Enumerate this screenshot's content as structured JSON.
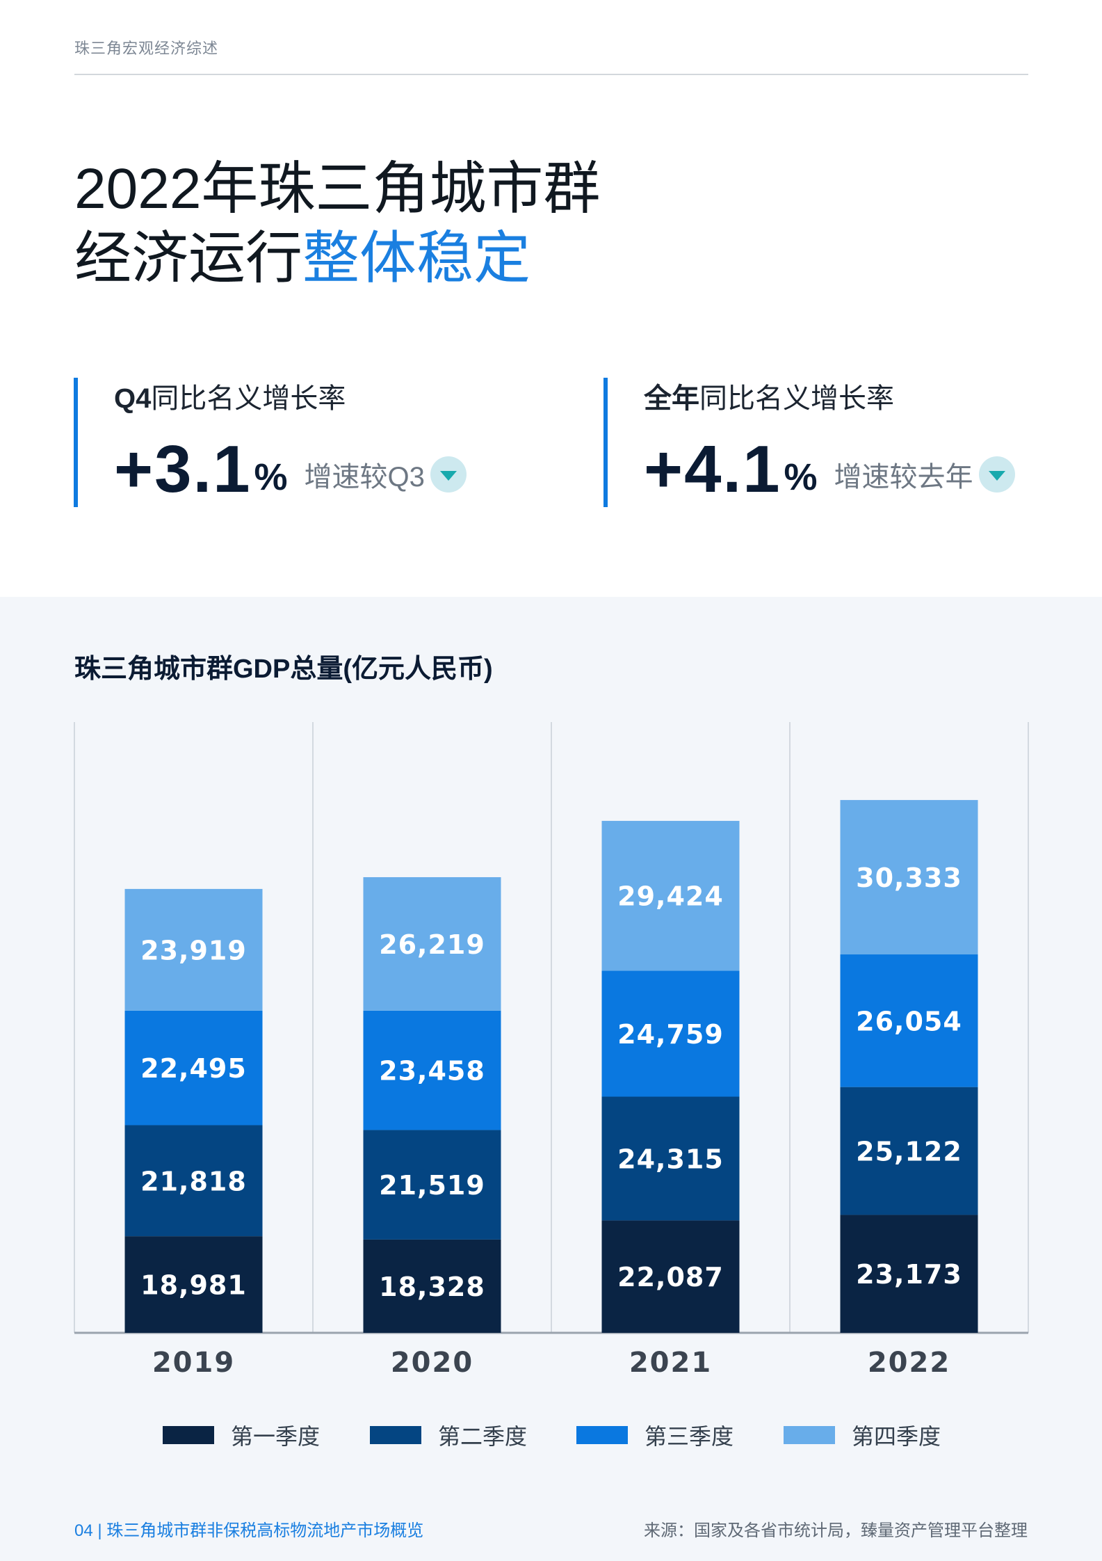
{
  "header": {
    "section": "珠三角宏观经济综述"
  },
  "title": {
    "line1": "2022年珠三角城市群",
    "line2_plain": "经济运行",
    "line2_accent": "整体稳定"
  },
  "kpis": [
    {
      "label_strong": "Q4",
      "label_rest": "同比名义增长率",
      "value": "+3.1",
      "unit": "%",
      "note": "增速较Q3",
      "icon": "down-triangle-icon"
    },
    {
      "label_strong": "全年",
      "label_rest": "同比名义增长率",
      "value": "+4.1",
      "unit": "%",
      "note": "增速较去年",
      "icon": "down-triangle-icon"
    }
  ],
  "chart_data": {
    "type": "bar",
    "stacked": true,
    "title": "珠三角城市群GDP总量(亿元人民币)",
    "categories": [
      "2019",
      "2020",
      "2021",
      "2022"
    ],
    "series": [
      {
        "name": "第一季度",
        "color": "#0a2444",
        "values": [
          18981,
          18328,
          22087,
          23173
        ],
        "labels": [
          "18,981",
          "18,328",
          "22,087",
          "23,173"
        ]
      },
      {
        "name": "第二季度",
        "color": "#044582",
        "values": [
          21818,
          21519,
          24315,
          25122
        ],
        "labels": [
          "21,818",
          "21,519",
          "24,315",
          "25,122"
        ]
      },
      {
        "name": "第三季度",
        "color": "#0a78e0",
        "values": [
          22495,
          23458,
          24759,
          26054
        ],
        "labels": [
          "22,495",
          "23,458",
          "24,759",
          "26,054"
        ]
      },
      {
        "name": "第四季度",
        "color": "#68adea",
        "values": [
          23919,
          26219,
          29424,
          30333
        ],
        "labels": [
          "23,919",
          "26,219",
          "29,424",
          "30,333"
        ]
      }
    ],
    "ylim": [
      0,
      120000
    ],
    "grid": "vertical separators",
    "legend": "bottom"
  },
  "footer": {
    "page": "04",
    "separator": "|",
    "report_title": "珠三角城市群非保税高标物流地产市场概览",
    "source": "来源：国家及各省市统计局，臻量资产管理平台整理"
  }
}
